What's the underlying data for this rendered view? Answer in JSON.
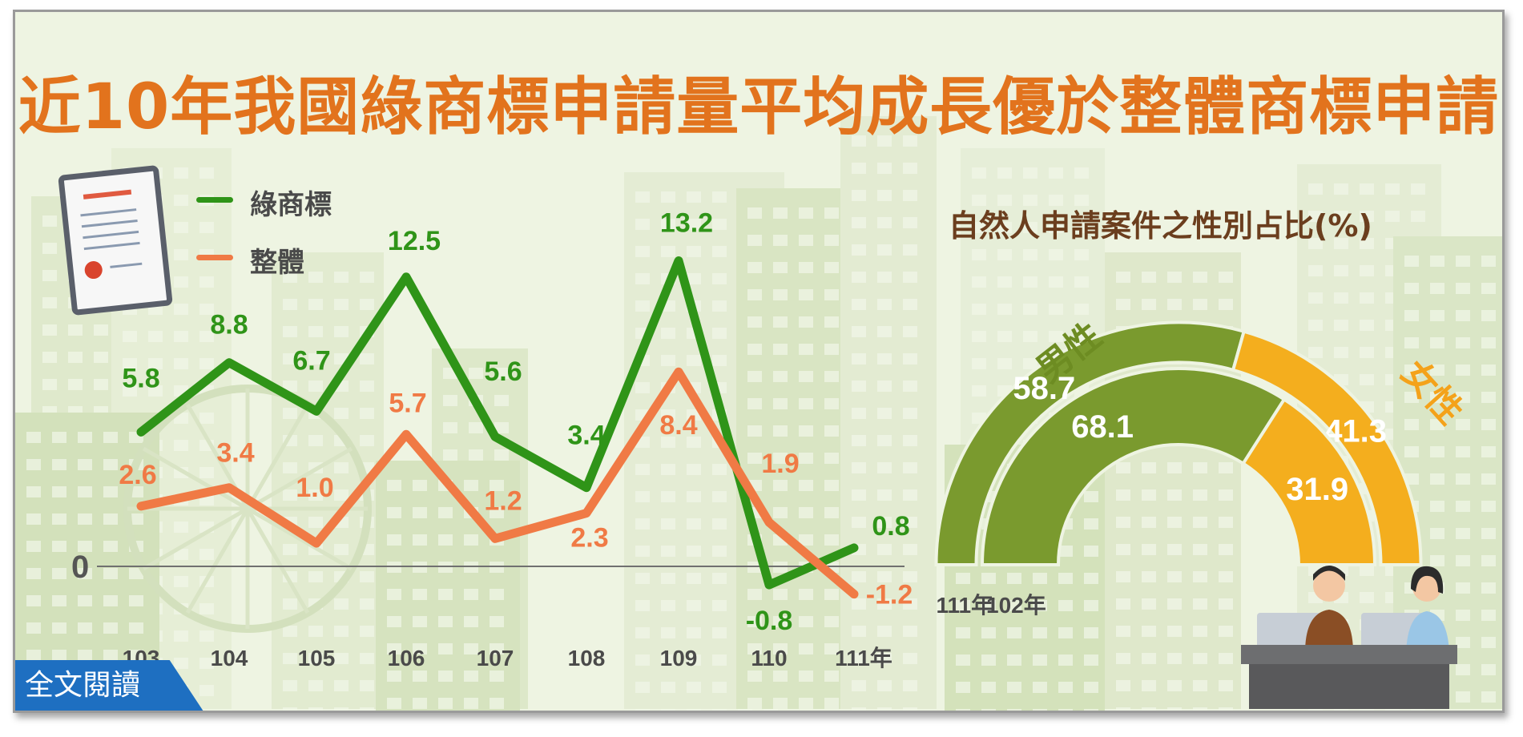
{
  "title": "近10年我國綠商標申請量平均成長優於整體商標申請",
  "read_button": "全文閱讀",
  "colors": {
    "green": "#2f9418",
    "orange": "#f07a45",
    "olive": "#7a9a2e",
    "amber": "#f4ae1e",
    "title": "#e2731d"
  },
  "chart_data": [
    {
      "type": "line",
      "categories": [
        "103",
        "104",
        "105",
        "106",
        "107",
        "108",
        "109",
        "110",
        "111年"
      ],
      "zero_label": "0",
      "series": [
        {
          "name": "綠商標",
          "color": "#2f9418",
          "values": [
            5.8,
            8.8,
            6.7,
            12.5,
            5.6,
            3.4,
            13.2,
            -0.8,
            0.8
          ],
          "labels": [
            "5.8",
            "8.8",
            "6.7",
            "12.5",
            "5.6",
            "3.4",
            "13.2",
            "-0.8",
            "0.8"
          ]
        },
        {
          "name": "整體",
          "color": "#f07a45",
          "values": [
            2.6,
            3.4,
            1.0,
            5.7,
            1.2,
            2.3,
            8.4,
            1.9,
            -1.2
          ],
          "labels": [
            "2.6",
            "3.4",
            "1.0",
            "5.7",
            "1.2",
            "2.3",
            "8.4",
            "1.9",
            "-1.2"
          ]
        }
      ],
      "ylim": [
        -1.5,
        14
      ]
    },
    {
      "type": "pie",
      "title": "自然人申請案件之性別占比(%)",
      "categories": [
        "男性",
        "女性"
      ],
      "series": [
        {
          "name": "111年",
          "values": [
            58.7,
            41.3
          ],
          "labels": [
            "58.7",
            "41.3"
          ]
        },
        {
          "name": "102年",
          "values": [
            68.1,
            31.9
          ],
          "labels": [
            "68.1",
            "31.9"
          ]
        }
      ]
    }
  ]
}
